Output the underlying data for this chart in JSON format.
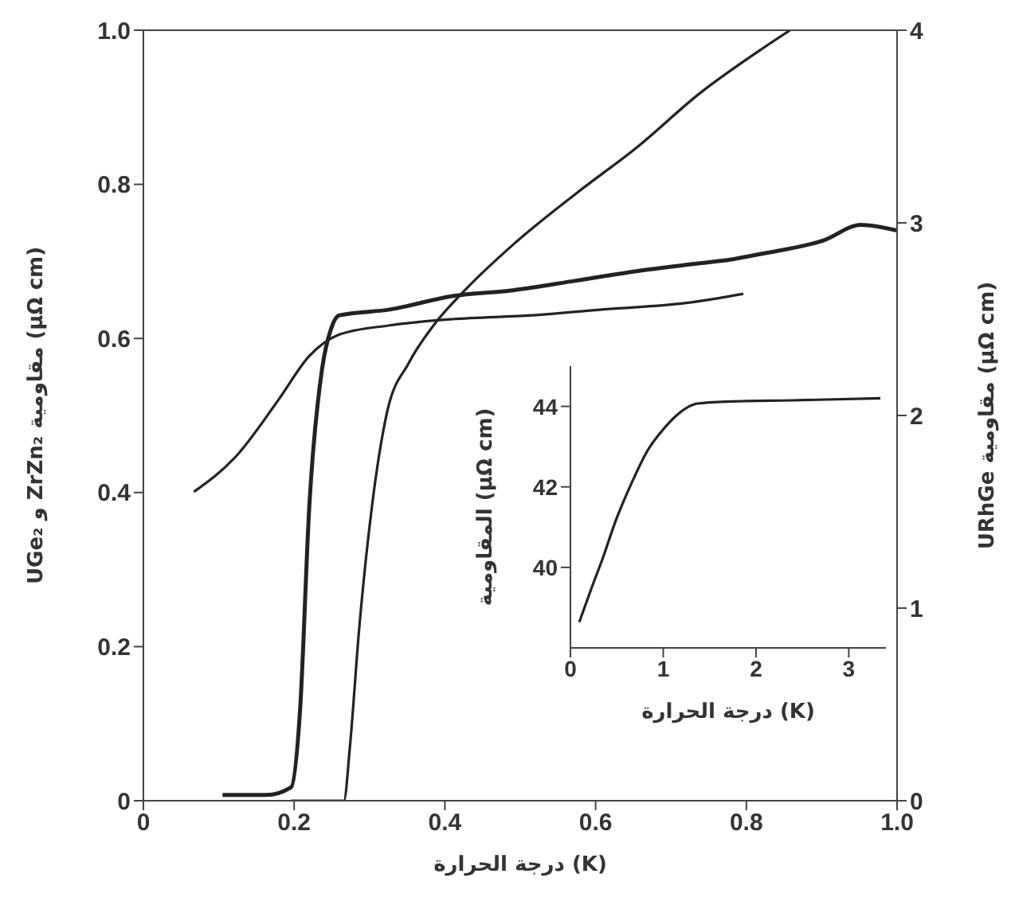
{
  "chart_data": [
    {
      "type": "line",
      "xlabel": "درجة الحرارة (K)",
      "ylabel": "UGe₂ و ZrZn₂ مقاومية (μΩ cm)",
      "y2label": "URhGe مقاومية (μΩ cm)",
      "xlim": [
        0,
        1
      ],
      "ylim": [
        0,
        1
      ],
      "y2lim": [
        0,
        4
      ],
      "xticks": [
        0,
        0.2,
        0.4,
        0.6,
        0.8,
        {
          "value": 1,
          "label": "1.0"
        }
      ],
      "yticks": [
        0,
        0.2,
        0.4,
        0.6,
        0.8,
        {
          "value": 1,
          "label": "1.0"
        }
      ],
      "y2ticks": [
        0,
        1,
        2,
        3,
        4
      ],
      "series": [
        {
          "color": "#222222",
          "x": [
            0.067,
            0.122,
            0.179,
            0.22,
            0.26,
            0.327,
            0.41,
            0.516,
            0.615,
            0.72,
            0.796
          ],
          "values": [
            0.401,
            0.446,
            0.52,
            0.577,
            0.605,
            0.617,
            0.625,
            0.63,
            0.638,
            0.646,
            0.658
          ]
        },
        {
          "color": "#222222",
          "x": [
            0.196,
            0.266,
            0.274,
            0.286,
            0.303,
            0.323,
            0.352,
            0.385,
            0.426,
            0.492,
            0.574,
            0.656,
            0.738,
            0.821,
            0.858
          ],
          "values": [
            0,
            0,
            0.07,
            0.22,
            0.38,
            0.503,
            0.568,
            0.617,
            0.662,
            0.723,
            0.788,
            0.849,
            0.918,
            0.976,
            1.0
          ]
        },
        {
          "color": "#222222",
          "axis": "y2",
          "x": [
            0.105,
            0.163,
            0.196,
            0.208,
            0.22,
            0.237,
            0.249,
            0.26,
            0.327,
            0.41,
            0.49,
            0.574,
            0.656,
            0.738,
            0.78,
            0.821,
            0.903,
            0.952,
            1.0
          ],
          "values": [
            0.03,
            0.03,
            0.07,
            0.48,
            1.52,
            2.24,
            2.45,
            2.52,
            2.55,
            2.62,
            2.65,
            2.7,
            2.75,
            2.79,
            2.81,
            2.84,
            2.91,
            2.99,
            2.96
          ]
        }
      ]
    },
    {
      "type": "line",
      "xlabel": "درجة الحرارة (K)",
      "ylabel": "المقاومية (μΩ cm)",
      "xlim": [
        0,
        3.4
      ],
      "ylim": [
        38,
        45
      ],
      "xticks": [
        0,
        1,
        2,
        3
      ],
      "yticks": [
        40,
        42,
        44
      ],
      "series": [
        {
          "color": "#222222",
          "x": [
            0.095,
            0.22,
            0.35,
            0.49,
            0.66,
            0.83,
            1.0,
            1.17,
            1.37,
            1.71,
            2.39,
            3.34
          ],
          "values": [
            38.64,
            39.44,
            40.24,
            41.17,
            42.1,
            42.9,
            43.43,
            43.83,
            44.07,
            44.12,
            44.15,
            44.2
          ]
        }
      ]
    }
  ]
}
